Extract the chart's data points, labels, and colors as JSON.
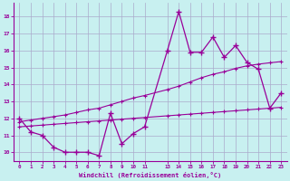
{
  "xlabel": "Windchill (Refroidissement éolien,°C)",
  "background_color": "#c8f0f0",
  "line_color": "#990099",
  "grid_color": "#aaaacc",
  "xmin": -0.5,
  "xmax": 23.5,
  "ymin": 9.5,
  "ymax": 18.8,
  "yticks": [
    10,
    11,
    12,
    13,
    14,
    15,
    16,
    17,
    18
  ],
  "xtick_positions": [
    0,
    1,
    2,
    3,
    4,
    5,
    6,
    7,
    8,
    9,
    10,
    11,
    13,
    14,
    15,
    16,
    17,
    18,
    19,
    20,
    21,
    22,
    23
  ],
  "xtick_labels": [
    "0",
    "1",
    "2",
    "3",
    "4",
    "5",
    "6",
    "7",
    "8",
    "9",
    "10",
    "11",
    "13",
    "14",
    "15",
    "16",
    "17",
    "18",
    "19",
    "20",
    "21",
    "22",
    "23"
  ],
  "line1_x": [
    0,
    1,
    2,
    3,
    4,
    5,
    6,
    7,
    8,
    9,
    10,
    11,
    13,
    14,
    15,
    16,
    17,
    18,
    19,
    20,
    21,
    22,
    23
  ],
  "line1_y": [
    12.0,
    11.2,
    11.0,
    10.3,
    10.0,
    10.0,
    10.0,
    9.8,
    12.3,
    10.5,
    11.1,
    11.5,
    16.0,
    18.3,
    15.9,
    15.9,
    16.8,
    15.6,
    16.3,
    15.3,
    14.9,
    12.6,
    13.5
  ],
  "line2_x": [
    0,
    1,
    2,
    3,
    4,
    5,
    6,
    7,
    8,
    9,
    10,
    11,
    13,
    14,
    15,
    16,
    17,
    18,
    19,
    20,
    21,
    22,
    23
  ],
  "line2_y": [
    11.8,
    11.9,
    12.0,
    12.1,
    12.2,
    12.35,
    12.5,
    12.6,
    12.8,
    13.0,
    13.2,
    13.35,
    13.7,
    13.9,
    14.15,
    14.4,
    14.6,
    14.75,
    14.95,
    15.1,
    15.2,
    15.28,
    15.35
  ],
  "line3_x": [
    0,
    1,
    2,
    3,
    4,
    5,
    6,
    7,
    8,
    9,
    10,
    11,
    13,
    14,
    15,
    16,
    17,
    18,
    19,
    20,
    21,
    22,
    23
  ],
  "line3_y": [
    11.5,
    11.55,
    11.6,
    11.65,
    11.7,
    11.75,
    11.8,
    11.85,
    11.9,
    11.95,
    12.0,
    12.05,
    12.15,
    12.2,
    12.25,
    12.3,
    12.35,
    12.4,
    12.45,
    12.5,
    12.55,
    12.6,
    12.65
  ]
}
